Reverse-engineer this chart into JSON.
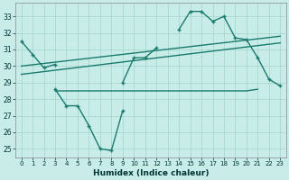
{
  "x": [
    0,
    1,
    2,
    3,
    4,
    5,
    6,
    7,
    8,
    9,
    10,
    11,
    12,
    13,
    14,
    15,
    16,
    17,
    18,
    19,
    20,
    21,
    22,
    23
  ],
  "line_main": [
    31.5,
    30.7,
    29.9,
    30.1,
    null,
    null,
    null,
    null,
    null,
    29.0,
    30.5,
    30.5,
    31.1,
    null,
    32.2,
    33.3,
    33.3,
    32.7,
    33.0,
    31.7,
    31.6,
    30.5,
    29.2,
    28.8
  ],
  "line_low": [
    null,
    null,
    null,
    28.6,
    27.6,
    27.6,
    26.4,
    25.0,
    24.9,
    27.3,
    null,
    null,
    null,
    null,
    null,
    null,
    null,
    null,
    null,
    null,
    null,
    null,
    null,
    null
  ],
  "line_flat": [
    null,
    null,
    null,
    28.5,
    28.5,
    28.5,
    28.5,
    28.5,
    28.5,
    28.5,
    28.5,
    28.5,
    28.5,
    28.5,
    28.5,
    28.5,
    28.5,
    28.5,
    28.5,
    28.5,
    28.5,
    28.6,
    null,
    null
  ],
  "trend1_x": [
    0,
    23
  ],
  "trend1_y": [
    30.0,
    31.8
  ],
  "trend2_x": [
    0,
    23
  ],
  "trend2_y": [
    29.5,
    31.4
  ],
  "xlabel": "Humidex (Indice chaleur)",
  "ylim": [
    24.5,
    33.8
  ],
  "yticks": [
    25,
    26,
    27,
    28,
    29,
    30,
    31,
    32,
    33
  ],
  "xticks": [
    0,
    1,
    2,
    3,
    4,
    5,
    6,
    7,
    8,
    9,
    10,
    11,
    12,
    13,
    14,
    15,
    16,
    17,
    18,
    19,
    20,
    21,
    22,
    23
  ],
  "bg_color": "#c8ede8",
  "grid_color": "#a8d8cc",
  "line_color": "#1a7a6e",
  "figsize": [
    3.2,
    2.0
  ],
  "dpi": 100
}
